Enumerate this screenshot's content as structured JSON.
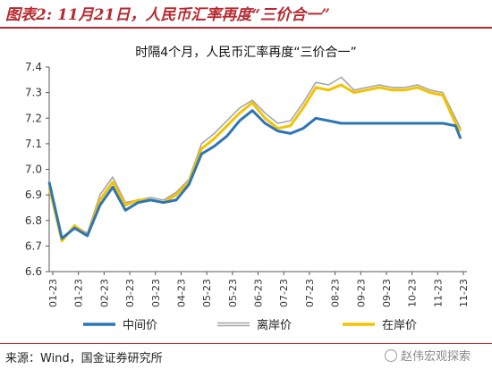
{
  "figure_title": "图表2: 11月21日，人民币汇率再度“三价合一”",
  "source_note": "来源：Wind，国金证券研究所",
  "watermark": "赵伟宏观探索",
  "chart_data": {
    "type": "line",
    "title": "时隔4个月，人民币汇率再度“三价合一”",
    "xlabel": "",
    "ylabel": "",
    "ylim": [
      6.6,
      7.4
    ],
    "yticks": [
      "6.6",
      "6.7",
      "6.8",
      "6.9",
      "7.0",
      "7.1",
      "7.2",
      "7.3",
      "7.4"
    ],
    "x_tick_labels": [
      "01-23",
      "01-23",
      "02-23",
      "03-23",
      "03-23",
      "04-23",
      "05-23",
      "05-23",
      "06-23",
      "07-23",
      "07-23",
      "08-23",
      "09-23",
      "09-23",
      "10-23",
      "11-23",
      "11-23"
    ],
    "x": [
      "01-03",
      "01-13",
      "01-23",
      "02-02",
      "02-12",
      "02-22",
      "03-04",
      "03-14",
      "03-24",
      "04-03",
      "04-13",
      "04-23",
      "05-03",
      "05-13",
      "05-23",
      "06-02",
      "06-12",
      "06-22",
      "07-02",
      "07-12",
      "07-22",
      "08-01",
      "08-11",
      "08-21",
      "08-31",
      "09-10",
      "09-20",
      "09-30",
      "10-10",
      "10-20",
      "10-30",
      "11-09",
      "11-19",
      "11-23"
    ],
    "series": [
      {
        "name": "中间价",
        "color": "#2e75b6",
        "values": [
          6.95,
          6.73,
          6.77,
          6.74,
          6.86,
          6.93,
          6.84,
          6.87,
          6.88,
          6.87,
          6.88,
          6.94,
          7.06,
          7.09,
          7.13,
          7.19,
          7.23,
          7.18,
          7.15,
          7.14,
          7.16,
          7.2,
          7.19,
          7.18,
          7.18,
          7.18,
          7.18,
          7.18,
          7.18,
          7.18,
          7.18,
          7.18,
          7.17,
          7.12
        ]
      },
      {
        "name": "离岸价",
        "color": "#a6a6a6",
        "values": [
          6.94,
          6.72,
          6.78,
          6.75,
          6.9,
          6.97,
          6.87,
          6.88,
          6.89,
          6.88,
          6.91,
          6.96,
          7.1,
          7.14,
          7.19,
          7.24,
          7.27,
          7.22,
          7.18,
          7.19,
          7.26,
          7.34,
          7.33,
          7.36,
          7.31,
          7.32,
          7.33,
          7.32,
          7.32,
          7.33,
          7.31,
          7.3,
          7.2,
          7.16
        ]
      },
      {
        "name": "在岸价",
        "color": "#f2c300",
        "values": [
          6.93,
          6.72,
          6.78,
          6.74,
          6.88,
          6.95,
          6.86,
          6.88,
          6.88,
          6.87,
          6.9,
          6.95,
          7.08,
          7.12,
          7.17,
          7.22,
          7.26,
          7.2,
          7.16,
          7.17,
          7.24,
          7.32,
          7.31,
          7.33,
          7.3,
          7.31,
          7.32,
          7.31,
          7.31,
          7.32,
          7.3,
          7.29,
          7.18,
          7.15
        ]
      }
    ],
    "legend_position": "bottom",
    "grid": false
  }
}
